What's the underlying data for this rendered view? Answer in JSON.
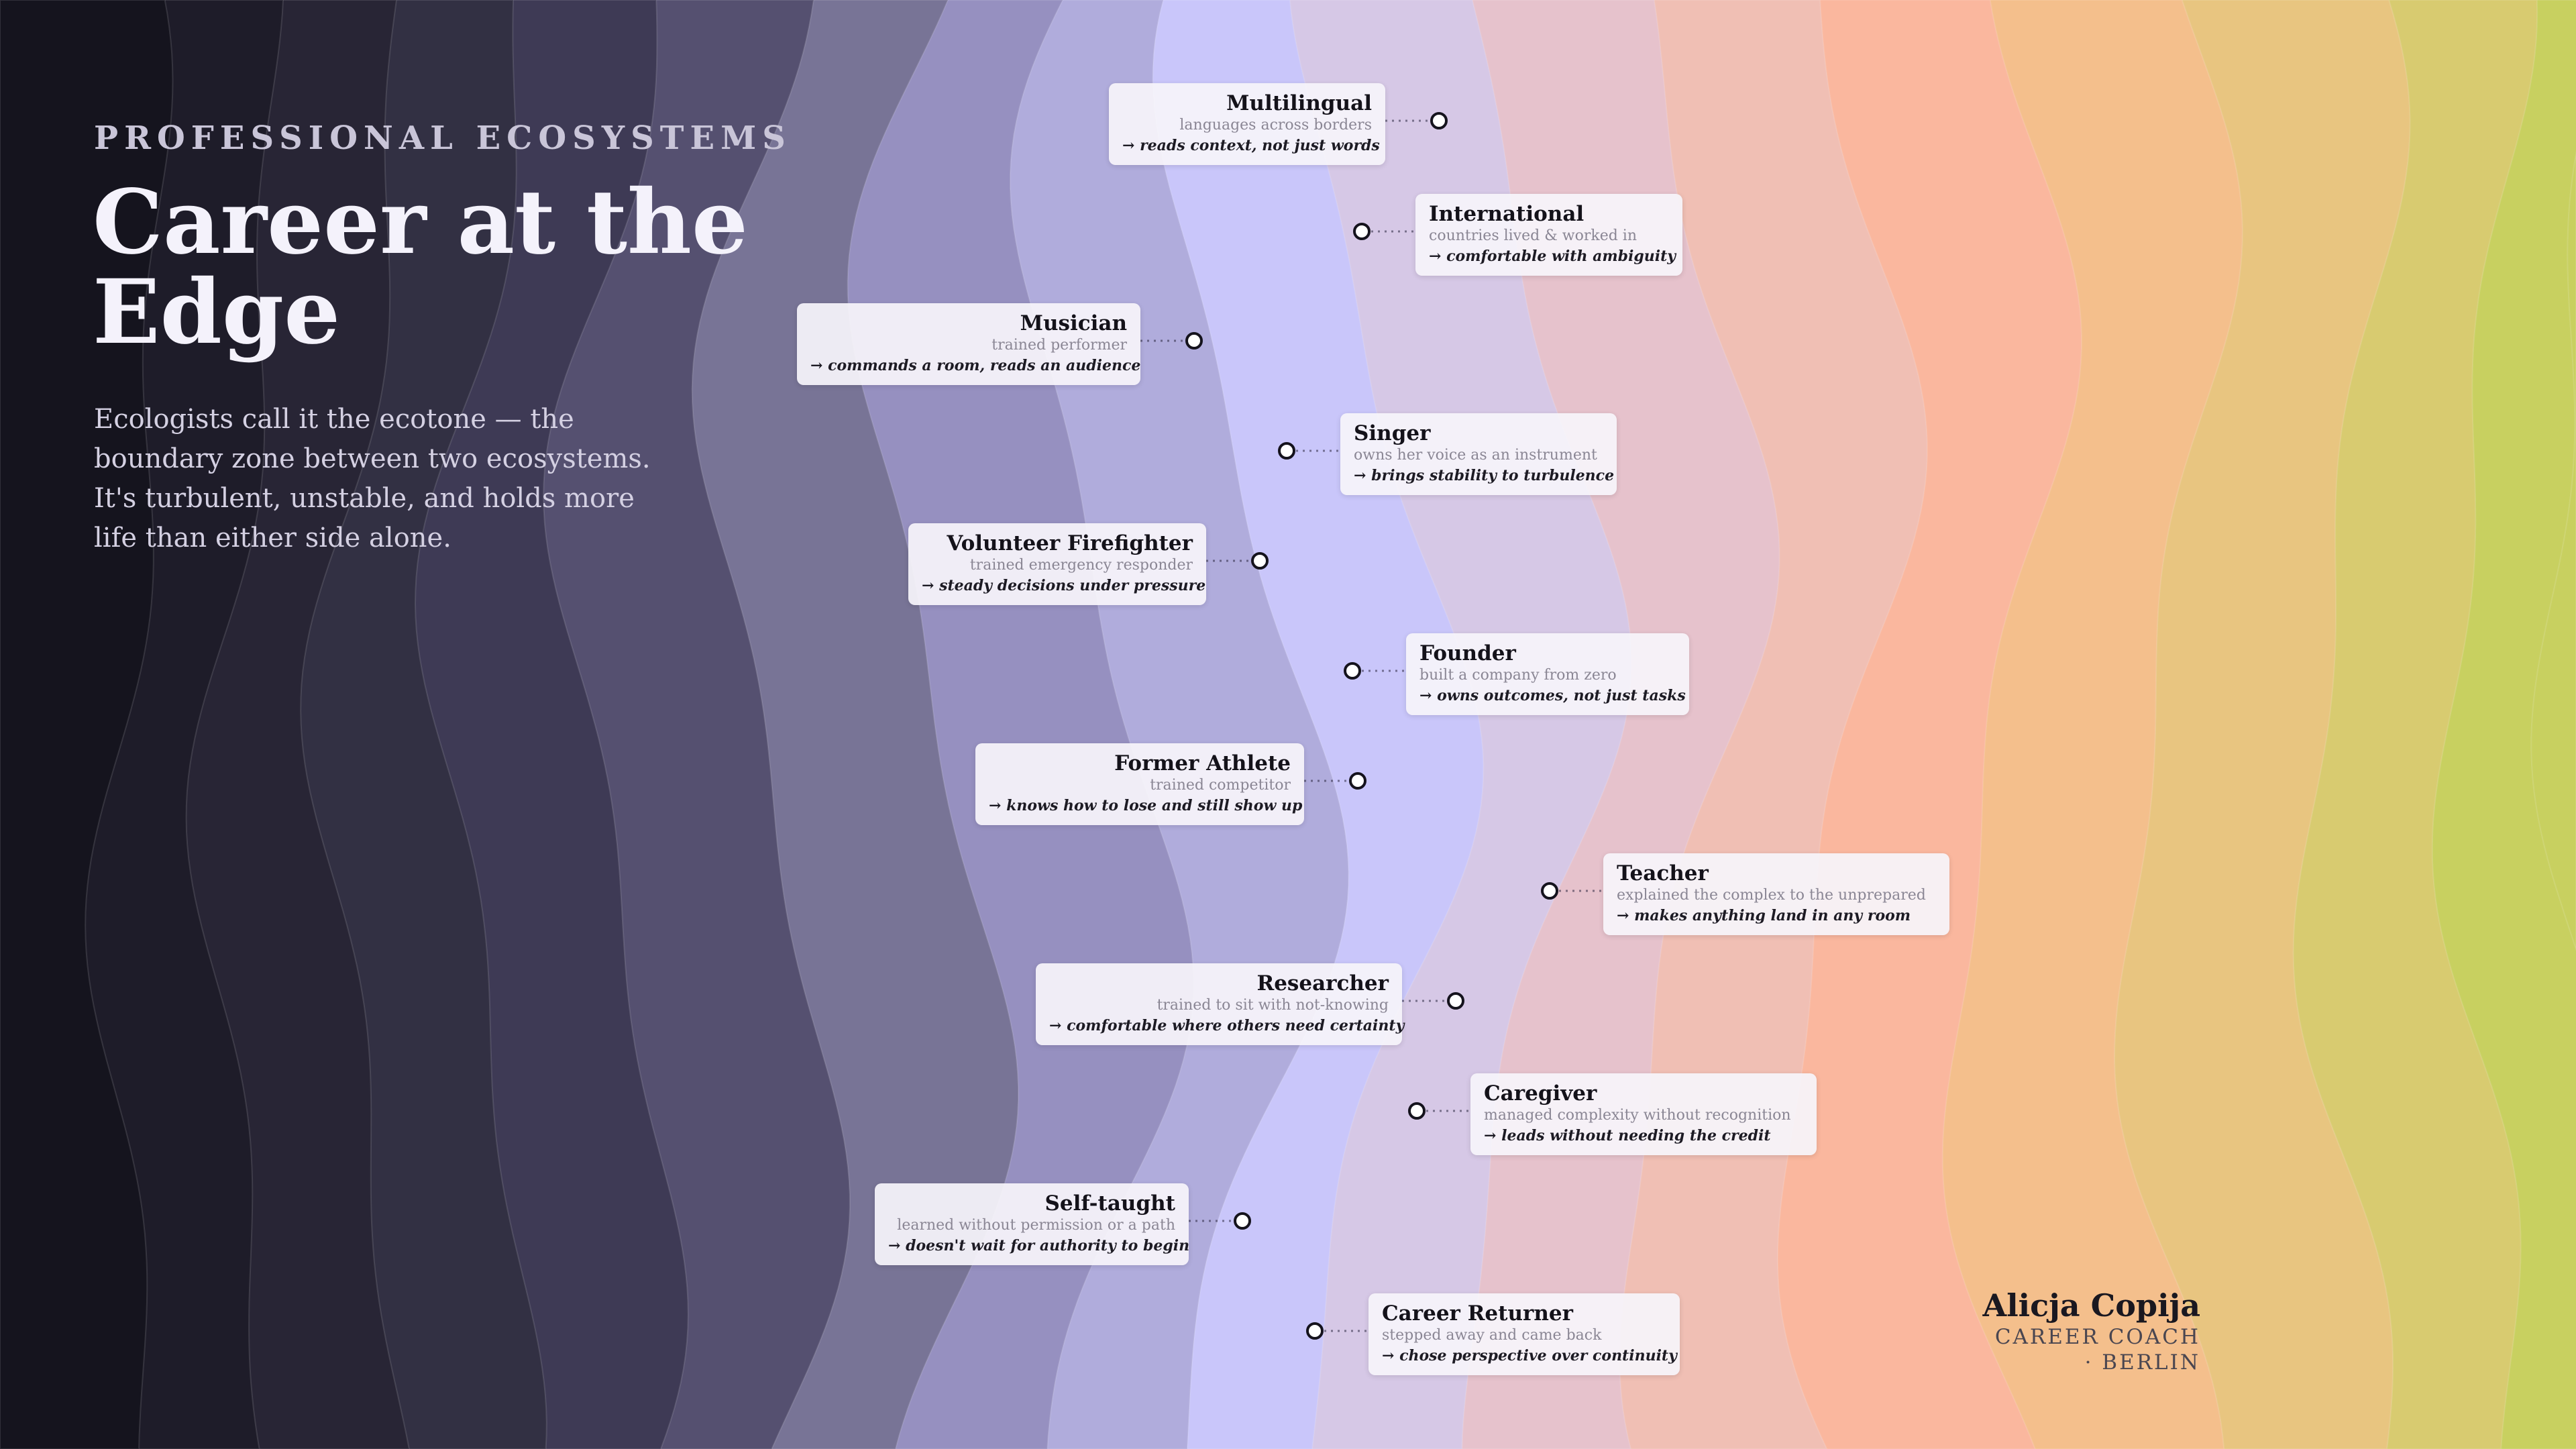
{
  "kicker": "PROFESSIONAL ECOSYSTEMS",
  "title": "Career at the Edge",
  "subtitle": "Ecologists call it the ecotone — the boundary zone between two ecosystems. It's turbulent, unstable, and holds more life than either side alone.",
  "palette": [
    "#15141e",
    "#1e1c29",
    "#282535",
    "#323043",
    "#3e3a55",
    "#555070",
    "#787496",
    "#9690c0",
    "#b0acdc",
    "#c9c6fa",
    "#d6c8e6",
    "#e6c2cc",
    "#f0bfb4",
    "#fab79e",
    "#f4bf8c",
    "#e8c580",
    "#d8cb70",
    "#c8d060"
  ],
  "signature": {
    "name": "Alicja Copija",
    "role": "CAREER COACH · BERLIN"
  },
  "items": [
    {
      "name": "Multilingual",
      "desc": "languages across borders",
      "take": "→ reads context, not just words",
      "icon": "circle-marker-icon"
    },
    {
      "name": "International",
      "desc": "countries lived & worked in",
      "take": "→ comfortable with ambiguity",
      "icon": "circle-marker-icon"
    },
    {
      "name": "Musician",
      "desc": "trained performer",
      "take": "→ commands a room, reads an audience",
      "icon": "circle-marker-icon"
    },
    {
      "name": "Singer",
      "desc": "owns her voice as an instrument",
      "take": "→ brings stability to turbulence",
      "icon": "circle-marker-icon"
    },
    {
      "name": "Volunteer Firefighter",
      "desc": "trained emergency responder",
      "take": "→ steady decisions under pressure",
      "icon": "circle-marker-icon"
    },
    {
      "name": "Founder",
      "desc": "built a company from zero",
      "take": "→ owns outcomes, not just tasks",
      "icon": "circle-marker-icon"
    },
    {
      "name": "Former Athlete",
      "desc": "trained competitor",
      "take": "→ knows how to lose and still show up",
      "icon": "circle-marker-icon"
    },
    {
      "name": "Teacher",
      "desc": "explained the complex to the unprepared",
      "take": "→ makes anything land in any room",
      "icon": "circle-marker-icon"
    },
    {
      "name": "Researcher",
      "desc": "trained to sit with not-knowing",
      "take": "→ comfortable where others need certainty",
      "icon": "circle-marker-icon"
    },
    {
      "name": "Caregiver",
      "desc": "managed complexity without recognition",
      "take": "→ leads without needing the credit",
      "icon": "circle-marker-icon"
    },
    {
      "name": "Self-taught",
      "desc": "learned without permission or a path",
      "take": "→ doesn't wait for authority to begin",
      "icon": "circle-marker-icon"
    },
    {
      "name": "Career Returner",
      "desc": "stepped away and came back",
      "take": "→ chose perspective over continuity",
      "icon": "circle-marker-icon"
    }
  ]
}
